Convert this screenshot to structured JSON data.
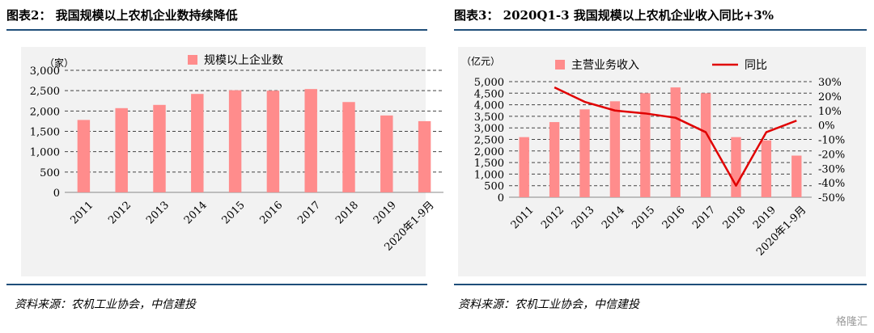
{
  "left": {
    "title": "图表2：  我国规模以上农机企业数持续降低",
    "source": "资料来源：农机工业协会，中信建投",
    "chart_data": {
      "type": "bar",
      "unit_label": "（家）",
      "categories": [
        "2011",
        "2012",
        "2013",
        "2014",
        "2015",
        "2016",
        "2017",
        "2018",
        "2019",
        "2020年1-9月"
      ],
      "series": [
        {
          "name": "规模以上企业数",
          "values": [
            1780,
            2070,
            2150,
            2420,
            2510,
            2500,
            2540,
            2220,
            1890,
            1750
          ]
        }
      ],
      "ylim": [
        0,
        3000
      ],
      "yticks": [
        0,
        500,
        1000,
        1500,
        2000,
        2500,
        3000
      ],
      "ytick_labels": [
        "0",
        "500",
        "1,000",
        "1,500",
        "2,000",
        "2,500",
        "3,000"
      ],
      "grid": true,
      "legend": "top-center"
    }
  },
  "right": {
    "title": "图表3：  2020Q1-3 我国规模以上农机企业收入同比+3%",
    "source": "资料来源：农机工业协会，中信建投",
    "chart_data": {
      "type": "bar",
      "unit_label": "（亿元）",
      "categories": [
        "2011",
        "2012",
        "2013",
        "2014",
        "2015",
        "2016",
        "2017",
        "2018",
        "2019",
        "2020年1-9月"
      ],
      "series": [
        {
          "name": "主营业务收入",
          "type": "bar",
          "axis": "left",
          "values": [
            2600,
            3250,
            3800,
            4150,
            4500,
            4750,
            4500,
            2600,
            2460,
            1800
          ]
        },
        {
          "name": "同比",
          "type": "line",
          "axis": "right",
          "values": [
            null,
            26,
            16,
            10,
            8,
            5,
            -5,
            -42,
            -5,
            3
          ]
        }
      ],
      "ylim": [
        0,
        5000
      ],
      "yticks": [
        0,
        500,
        1000,
        1500,
        2000,
        2500,
        3000,
        3500,
        4000,
        4500,
        5000
      ],
      "ytick_labels": [
        "0",
        "500",
        "1,000",
        "1,500",
        "2,000",
        "2,500",
        "3,000",
        "3,500",
        "4,000",
        "4,500",
        "5,000"
      ],
      "y2lim": [
        -50,
        30
      ],
      "y2ticks": [
        -50,
        -40,
        -30,
        -20,
        -10,
        0,
        10,
        20,
        30
      ],
      "y2tick_labels": [
        "-50%",
        "-40%",
        "-30%",
        "-20%",
        "-10%",
        "0%",
        "10%",
        "20%",
        "30%"
      ],
      "grid": true,
      "legend": "top-center"
    }
  },
  "colors": {
    "bar": "#ff8c8c",
    "line": "#e00000",
    "grid": "#444444",
    "rule": "#1f4e79"
  },
  "watermark": "格隆汇"
}
